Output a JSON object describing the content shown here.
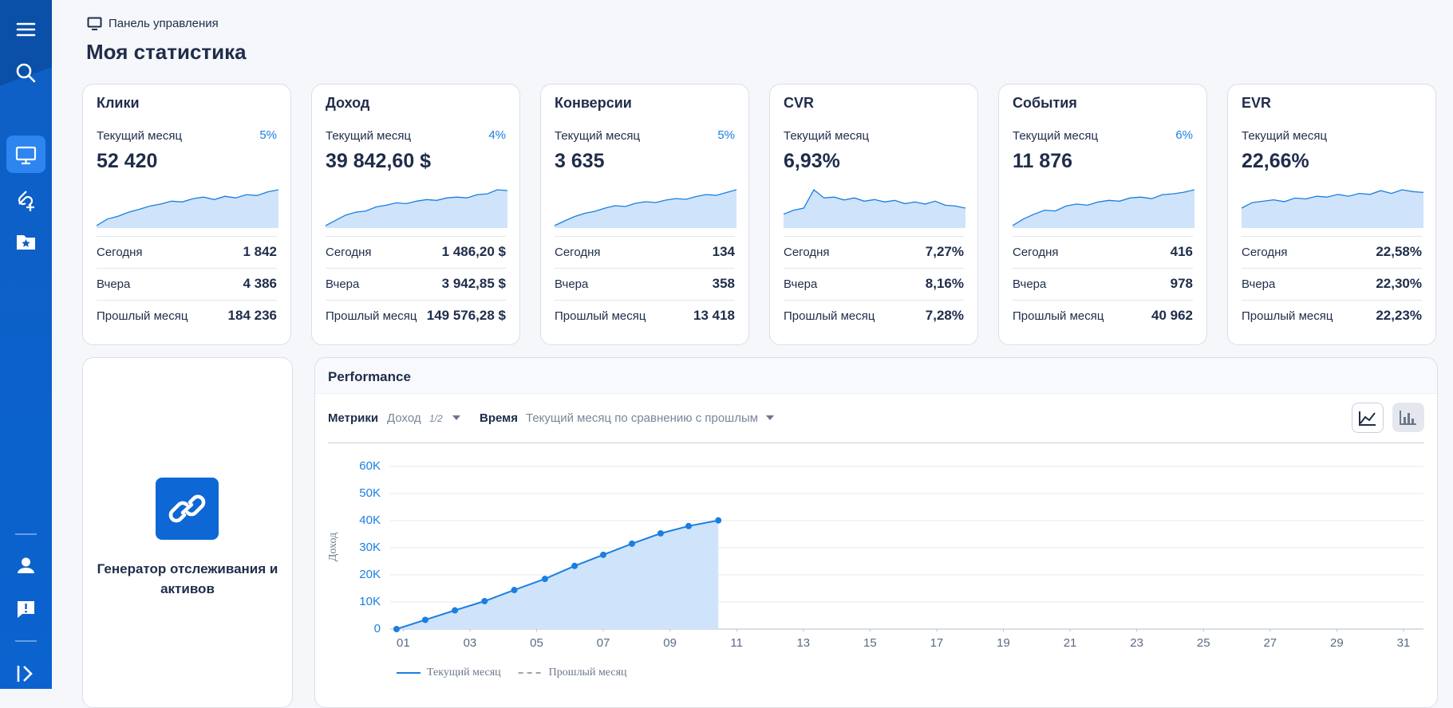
{
  "header": {
    "breadcrumb": "Панель управления",
    "title": "Моя статистика"
  },
  "cards": [
    {
      "title": "Клики",
      "period": "Текущий месяц",
      "change": "5%",
      "value": "52 420",
      "sparkline": [
        2,
        18,
        25,
        35,
        42,
        50,
        55,
        62,
        60,
        68,
        72,
        66,
        74,
        70,
        78,
        76,
        85,
        90
      ],
      "rows": [
        {
          "label": "Сегодня",
          "value": "1 842"
        },
        {
          "label": "Вчера",
          "value": "4 386"
        },
        {
          "label": "Прошлый месяц",
          "value": "184 236"
        }
      ]
    },
    {
      "title": "Доход",
      "period": "Текущий месяц",
      "change": "4%",
      "value": "39 842,60 $",
      "sparkline": [
        2,
        15,
        28,
        35,
        38,
        48,
        52,
        58,
        56,
        62,
        66,
        64,
        70,
        72,
        70,
        78,
        80,
        90,
        88
      ],
      "rows": [
        {
          "label": "Сегодня",
          "value": "1 486,20 $"
        },
        {
          "label": "Вчера",
          "value": "3 942,85 $"
        },
        {
          "label": "Прошлый месяц",
          "value": "149 576,28 $"
        }
      ]
    },
    {
      "title": "Конверсии",
      "period": "Текущий месяц",
      "change": "5%",
      "value": "3 635",
      "sparkline": [
        2,
        14,
        25,
        33,
        38,
        46,
        52,
        50,
        58,
        62,
        60,
        66,
        70,
        68,
        75,
        80,
        78,
        85,
        92
      ],
      "rows": [
        {
          "label": "Сегодня",
          "value": "134"
        },
        {
          "label": "Вчера",
          "value": "358"
        },
        {
          "label": "Прошлый месяц",
          "value": "13 418"
        }
      ]
    },
    {
      "title": "CVR",
      "period": "Текущий месяц",
      "value": "6,93%",
      "sparkline": [
        30,
        40,
        45,
        90,
        70,
        72,
        65,
        70,
        62,
        66,
        60,
        64,
        56,
        60,
        55,
        62,
        52,
        50,
        45
      ],
      "rows": [
        {
          "label": "Сегодня",
          "value": "7,27%"
        },
        {
          "label": "Вчера",
          "value": "8,16%"
        },
        {
          "label": "Прошлый месяц",
          "value": "7,28%"
        }
      ]
    },
    {
      "title": "События",
      "period": "Текущий месяц",
      "change": "6%",
      "value": "11 876",
      "sparkline": [
        2,
        18,
        30,
        40,
        38,
        50,
        55,
        52,
        60,
        64,
        62,
        70,
        72,
        68,
        78,
        80,
        84,
        90
      ],
      "rows": [
        {
          "label": "Сегодня",
          "value": "416"
        },
        {
          "label": "Вчера",
          "value": "978"
        },
        {
          "label": "Прошлый месяц",
          "value": "40 962"
        }
      ]
    },
    {
      "title": "EVR",
      "period": "Текущий месяц",
      "value": "22,66%",
      "sparkline": [
        40,
        52,
        55,
        58,
        54,
        62,
        60,
        66,
        64,
        70,
        66,
        72,
        70,
        78,
        72,
        80,
        76,
        74
      ],
      "rows": [
        {
          "label": "Сегодня",
          "value": "22,58%"
        },
        {
          "label": "Вчера",
          "value": "22,30%"
        },
        {
          "label": "Прошлый месяц",
          "value": "22,23%"
        }
      ]
    }
  ],
  "generator": {
    "label": "Генератор отслеживания и активов"
  },
  "performance": {
    "title": "Performance",
    "metrics_label": "Метрики",
    "metrics_value": "Доход",
    "metrics_count": "1/2",
    "time_label": "Время",
    "time_value": "Текущий месяц по сравнению с прошлым"
  },
  "chart_data": {
    "type": "line",
    "y_label": "Доход",
    "x": [
      0.8,
      1.66,
      2.55,
      3.44,
      4.33,
      5.25,
      6.14,
      7.0,
      7.86,
      8.72,
      9.56,
      10.45
    ],
    "series": [
      {
        "name": "Текущий месяц",
        "color": "#1a7fe0",
        "fill": "#cfe3fa",
        "values": [
          0,
          3400,
          6900,
          10300,
          14400,
          18500,
          23300,
          27400,
          31500,
          35300,
          38000,
          40100
        ]
      },
      {
        "name": "Прошлый месяц",
        "color": "#9aa5b1",
        "dashed": true,
        "values": [
          null,
          null,
          null,
          null,
          null,
          null,
          null,
          null,
          null,
          null,
          null,
          null
        ]
      }
    ],
    "xlim": [
      0.8,
      31.6
    ],
    "xticks": [
      {
        "value": 1,
        "label": "01"
      },
      {
        "value": 3,
        "label": "03"
      },
      {
        "value": 5,
        "label": "05"
      },
      {
        "value": 7,
        "label": "07"
      },
      {
        "value": 9,
        "label": "09"
      },
      11,
      13,
      15,
      17,
      19,
      21,
      23,
      25,
      27,
      29,
      31
    ],
    "ylim": [
      0,
      60000
    ],
    "yticks": [
      0,
      {
        "value": 10000,
        "label": "10K"
      },
      {
        "value": 20000,
        "label": "20K"
      },
      {
        "value": 30000,
        "label": "30K"
      },
      {
        "value": 40000,
        "label": "40K"
      },
      {
        "value": 50000,
        "label": "50K"
      },
      {
        "value": 60000,
        "label": "60K"
      }
    ],
    "grid": true
  }
}
